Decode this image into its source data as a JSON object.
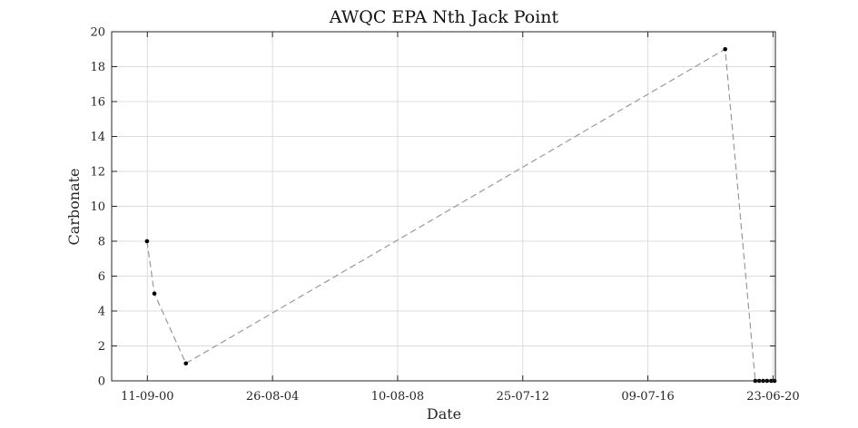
{
  "chart_data": {
    "type": "line",
    "title": "AWQC EPA Nth Jack Point",
    "xlabel": "Date",
    "ylabel": "Carbonate",
    "x_axis_type": "date",
    "xlim": [
      "1999-07-27",
      "2020-07-20"
    ],
    "ylim": [
      0,
      20
    ],
    "x_ticks": [
      {
        "date": "2000-09-11",
        "label": "11-09-00"
      },
      {
        "date": "2004-08-26",
        "label": "26-08-04"
      },
      {
        "date": "2008-08-10",
        "label": "10-08-08"
      },
      {
        "date": "2012-07-25",
        "label": "25-07-12"
      },
      {
        "date": "2016-07-09",
        "label": "09-07-16"
      },
      {
        "date": "2020-06-23",
        "label": "23-06-20"
      }
    ],
    "y_ticks": [
      0,
      2,
      4,
      6,
      8,
      10,
      12,
      14,
      16,
      18,
      20
    ],
    "grid": true,
    "legend": "none",
    "series": [
      {
        "line_style": "dashed",
        "line_color": "#999999",
        "marker_color": "#000000",
        "points": [
          {
            "x": "2000-09-07",
            "y": 8
          },
          {
            "x": "2000-12-01",
            "y": 5
          },
          {
            "x": "2001-11-30",
            "y": 1
          },
          {
            "x": "2018-12-18",
            "y": 19
          },
          {
            "x": "2019-12-01",
            "y": 0
          },
          {
            "x": "2020-01-15",
            "y": 0
          },
          {
            "x": "2020-03-01",
            "y": 0
          },
          {
            "x": "2020-04-15",
            "y": 0
          },
          {
            "x": "2020-06-01",
            "y": 0
          },
          {
            "x": "2020-07-10",
            "y": 0
          }
        ]
      }
    ]
  }
}
